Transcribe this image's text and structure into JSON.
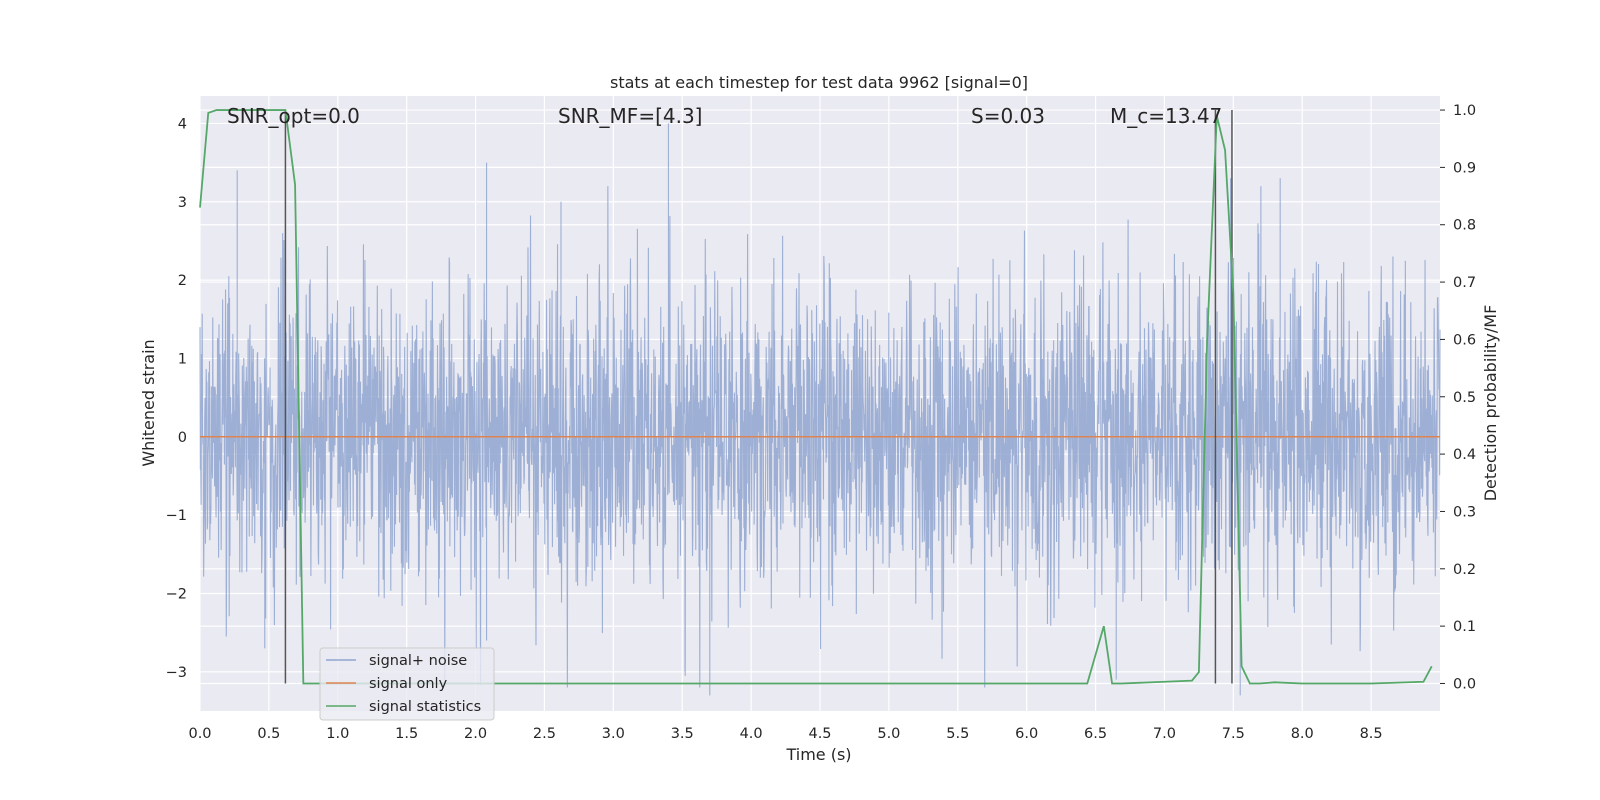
{
  "chart_data": {
    "type": "line",
    "title": "stats at each timestep for test data 9962 [signal=0]",
    "xlabel": "Time (s)",
    "ylabel_left": "Whitened strain",
    "ylabel_right": "Detection probability/MF",
    "xlim": [
      0.0,
      9.0
    ],
    "ylim_left": [
      -3.5,
      4.35
    ],
    "ylim_right": [
      -0.048,
      1.0245
    ],
    "x_ticks": [
      0.0,
      0.5,
      1.0,
      1.5,
      2.0,
      2.5,
      3.0,
      3.5,
      4.0,
      4.5,
      5.0,
      5.5,
      6.0,
      6.5,
      7.0,
      7.5,
      8.0,
      8.5
    ],
    "x_tick_labels": [
      "0.0",
      "0.5",
      "1.0",
      "1.5",
      "2.0",
      "2.5",
      "3.0",
      "3.5",
      "4.0",
      "4.5",
      "5.0",
      "5.5",
      "6.0",
      "6.5",
      "7.0",
      "7.5",
      "8.0",
      "8.5"
    ],
    "y_ticks_left": [
      -3,
      -2,
      -1,
      0,
      1,
      2,
      3,
      4
    ],
    "y_tick_labels_left": [
      "−3",
      "−2",
      "−1",
      "0",
      "1",
      "2",
      "3",
      "4"
    ],
    "y_ticks_right": [
      0.0,
      0.1,
      0.2,
      0.3,
      0.4,
      0.5,
      0.6,
      0.7,
      0.8,
      0.9,
      1.0
    ],
    "y_tick_labels_right": [
      "0.0",
      "0.1",
      "0.2",
      "0.3",
      "0.4",
      "0.5",
      "0.6",
      "0.7",
      "0.8",
      "0.9",
      "1.0"
    ],
    "grid": true,
    "legend_position": "lower-left",
    "series": [
      {
        "name": "signal+ noise",
        "axis": "left",
        "color": "#8fa5cf",
        "kind": "dense noise trace",
        "sample_rate_hz": 2048,
        "spikes": [
          {
            "x": 0.27,
            "y": 3.4
          },
          {
            "x": 0.6,
            "y": 2.6
          },
          {
            "x": 2.08,
            "y": 3.5
          },
          {
            "x": 2.62,
            "y": 3.0
          },
          {
            "x": 3.4,
            "y": 4.0
          },
          {
            "x": 7.48,
            "y": 3.3
          },
          {
            "x": 7.7,
            "y": 3.2
          },
          {
            "x": 7.84,
            "y": 3.3
          },
          {
            "x": 3.52,
            "y": -3.0
          },
          {
            "x": 3.7,
            "y": -3.3
          },
          {
            "x": 6.65,
            "y": -3.1
          },
          {
            "x": 7.55,
            "y": -3.3
          },
          {
            "x": 0.47,
            "y": -2.7
          },
          {
            "x": 2.08,
            "y": -2.6
          }
        ]
      },
      {
        "name": "signal only",
        "axis": "left",
        "color": "#dd8452",
        "x": [
          0.0,
          9.0
        ],
        "y": [
          0.0,
          0.0
        ]
      },
      {
        "name": "signal statistics",
        "axis": "right",
        "color": "#55a868",
        "x": [
          0.0,
          0.06,
          0.12,
          0.19,
          0.25,
          0.31,
          0.38,
          0.44,
          0.5,
          0.56,
          0.62,
          0.69,
          0.75,
          0.8,
          1.0,
          2.0,
          3.0,
          4.0,
          5.0,
          6.0,
          6.44,
          6.5,
          6.56,
          6.62,
          6.69,
          7.2,
          7.25,
          7.31,
          7.38,
          7.44,
          7.5,
          7.56,
          7.62,
          7.69,
          7.8,
          8.0,
          8.5,
          8.88,
          8.94
        ],
        "y": [
          0.83,
          0.995,
          1.0,
          1.0,
          1.0,
          1.0,
          1.0,
          1.0,
          1.0,
          1.0,
          1.0,
          0.87,
          0.0,
          0.0,
          0.0,
          0.0,
          0.0,
          0.0,
          0.0,
          0.0,
          0.0,
          0.05,
          0.1,
          0.0,
          0.0,
          0.005,
          0.02,
          0.6,
          0.99,
          0.93,
          0.68,
          0.03,
          0.0,
          0.0,
          0.002,
          0.0,
          0.0,
          0.003,
          0.03
        ]
      }
    ],
    "vertical_lines": [
      0.62,
      7.37,
      7.49
    ],
    "annotations": [
      {
        "text": "SNR_opt=0.0",
        "x": 0.2
      },
      {
        "text": "SNR_MF=[4.3]",
        "x": 2.6
      },
      {
        "text": "S=0.03",
        "x": 5.6
      },
      {
        "text": "M_c=13.47",
        "x": 6.6
      }
    ]
  }
}
